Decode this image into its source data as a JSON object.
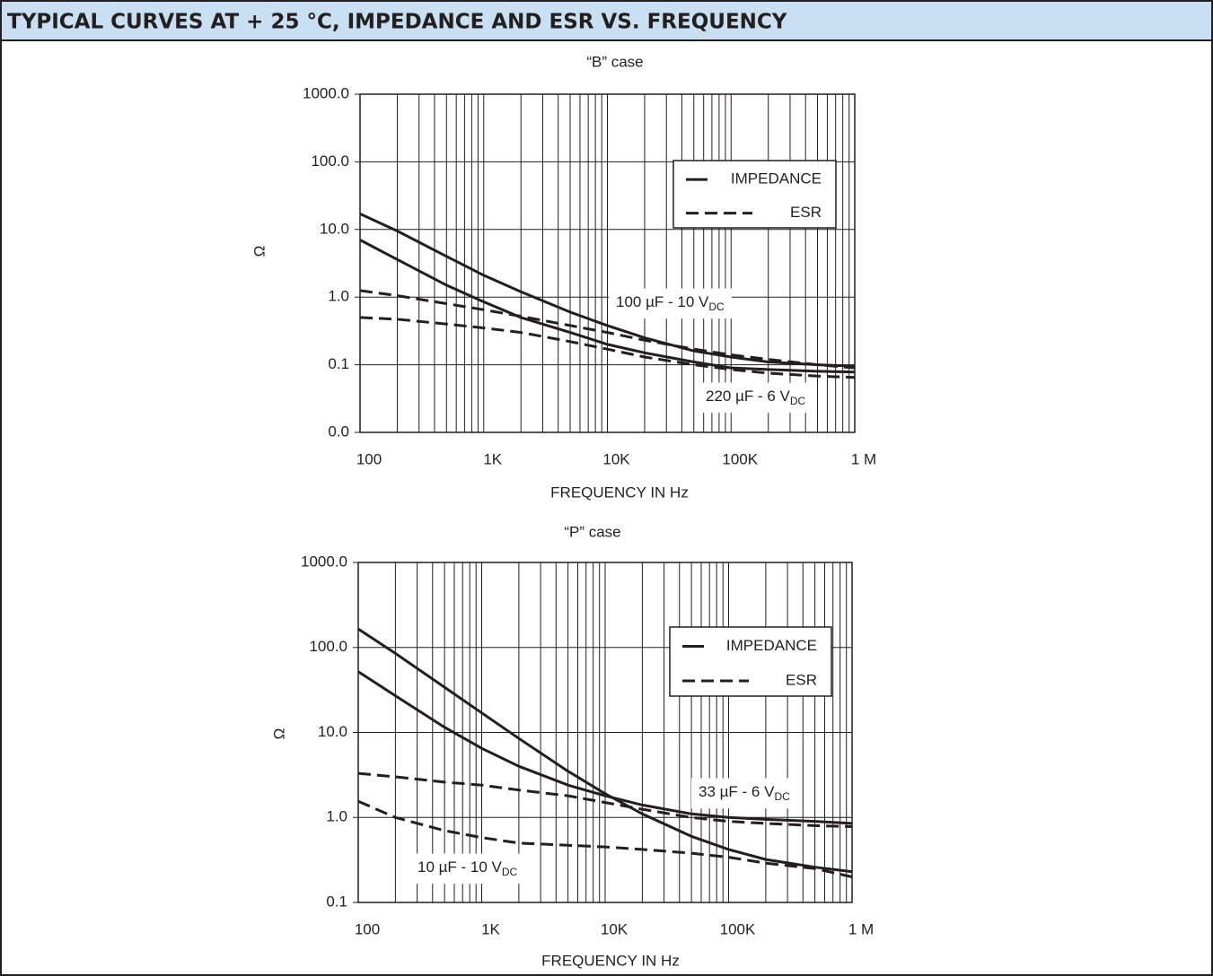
{
  "header": {
    "title": "TYPICAL CURVES AT + 25 °C, IMPEDANCE AND ESR VS. FREQUENCY"
  },
  "chart_data": [
    {
      "type": "line",
      "title": "“B” case",
      "xlabel": "FREQUENCY IN Hz",
      "ylabel": "Ω",
      "xscale": "log",
      "yscale": "log",
      "grid": true,
      "legend_position": "upper right",
      "xlim": [
        100,
        1000000
      ],
      "ylim": [
        0.01,
        1000
      ],
      "xticks": [
        100,
        {
          "value": 1000,
          "label": "1K"
        },
        {
          "value": 10000,
          "label": "10K"
        },
        {
          "value": 100000,
          "label": "100K"
        },
        {
          "value": 1000000,
          "label": "1 M"
        }
      ],
      "yticks": [
        {
          "value": 1000,
          "label": "1000.0"
        },
        {
          "value": 100,
          "label": "100.0"
        },
        {
          "value": 10,
          "label": "10.0"
        },
        {
          "value": 1,
          "label": "1.0"
        },
        0.1,
        {
          "value": 0.01,
          "label": "0.0"
        }
      ],
      "legend": [
        {
          "label": "IMPEDANCE",
          "dash": "solid"
        },
        {
          "label": "ESR",
          "dash": "dashed"
        }
      ],
      "annotations": [
        {
          "text": "100 µF - 10 V",
          "sub": "DC"
        },
        {
          "text": "220 µF - 6 V",
          "sub": "DC"
        }
      ],
      "x": [
        100,
        200,
        500,
        1000,
        2000,
        5000,
        10000,
        20000,
        50000,
        100000,
        200000,
        500000,
        1000000
      ],
      "series": [
        {
          "style": 0,
          "color": "#231f20",
          "values": [
            17,
            9.5,
            4,
            2.1,
            1.2,
            0.6,
            0.38,
            0.25,
            0.16,
            0.13,
            0.11,
            0.1,
            0.095
          ]
        },
        {
          "style": 0,
          "color": "#231f20",
          "values": [
            7,
            3.6,
            1.5,
            0.85,
            0.5,
            0.3,
            0.2,
            0.15,
            0.11,
            0.09,
            0.085,
            0.08,
            0.078
          ]
        },
        {
          "style": 1,
          "color": "#231f20",
          "values": [
            1.25,
            1.05,
            0.8,
            0.65,
            0.52,
            0.38,
            0.3,
            0.23,
            0.17,
            0.14,
            0.12,
            0.1,
            0.09
          ]
        },
        {
          "style": 1,
          "color": "#231f20",
          "values": [
            0.5,
            0.47,
            0.4,
            0.35,
            0.3,
            0.22,
            0.17,
            0.13,
            0.1,
            0.085,
            0.075,
            0.068,
            0.065
          ]
        }
      ]
    },
    {
      "type": "line",
      "title": "“P” case",
      "xlabel": "FREQUENCY IN Hz",
      "ylabel": "Ω",
      "xscale": "log",
      "yscale": "log",
      "grid": true,
      "legend_position": "upper right",
      "xlim": [
        100,
        1000000
      ],
      "ylim": [
        0.1,
        1000
      ],
      "xticks": [
        100,
        {
          "value": 1000,
          "label": "1K"
        },
        {
          "value": 10000,
          "label": "10K"
        },
        {
          "value": 100000,
          "label": "100K"
        },
        {
          "value": 1000000,
          "label": "1 M"
        }
      ],
      "yticks": [
        {
          "value": 1000,
          "label": "1000.0"
        },
        {
          "value": 100,
          "label": "100.0"
        },
        {
          "value": 10,
          "label": "10.0"
        },
        {
          "value": 1,
          "label": "1.0"
        },
        0.1
      ],
      "legend": [
        {
          "label": "IMPEDANCE",
          "dash": "solid"
        },
        {
          "label": "ESR",
          "dash": "dashed"
        }
      ],
      "annotations": [
        {
          "text": "33 µF - 6 V",
          "sub": "DC"
        },
        {
          "text": "10 µF - 10 V",
          "sub": "DC"
        }
      ],
      "x": [
        100,
        200,
        500,
        1000,
        2000,
        5000,
        10000,
        20000,
        50000,
        100000,
        200000,
        500000,
        1000000
      ],
      "series": [
        {
          "style": 0,
          "color": "#231f20",
          "values": [
            165,
            85,
            34,
            17,
            8.5,
            3.5,
            1.9,
            1.1,
            0.6,
            0.42,
            0.32,
            0.26,
            0.23
          ]
        },
        {
          "style": 0,
          "color": "#231f20",
          "values": [
            52,
            27,
            11.5,
            6.5,
            4,
            2.4,
            1.8,
            1.4,
            1.1,
            1.0,
            0.95,
            0.9,
            0.85
          ]
        },
        {
          "style": 1,
          "color": "#231f20",
          "values": [
            3.3,
            3.0,
            2.6,
            2.4,
            2.1,
            1.8,
            1.5,
            1.25,
            1.0,
            0.9,
            0.85,
            0.8,
            0.78
          ]
        },
        {
          "style": 1,
          "color": "#231f20",
          "values": [
            1.55,
            1.0,
            0.7,
            0.58,
            0.5,
            0.47,
            0.45,
            0.42,
            0.38,
            0.34,
            0.29,
            0.25,
            0.2
          ]
        }
      ]
    }
  ]
}
